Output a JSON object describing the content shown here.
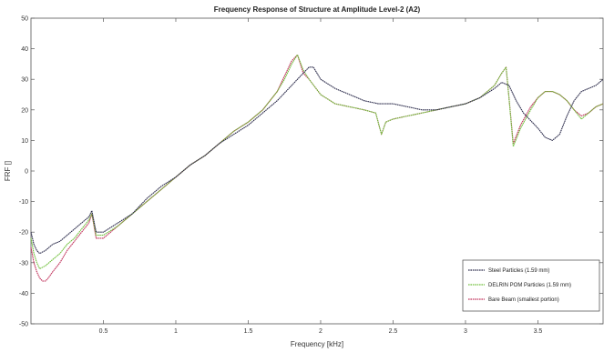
{
  "chart_data": {
    "type": "line",
    "title": "Frequency Response of Structure at Amplitude Level-2 (A2)",
    "xlabel": "Frequency [kHz]",
    "ylabel": "FRF []",
    "xlim": [
      0,
      3.95
    ],
    "ylim": [
      -50,
      50
    ],
    "xticks": [
      0.5,
      1,
      1.5,
      2,
      2.5,
      3,
      3.5
    ],
    "xtick_labels": [
      "0.5",
      "1",
      "1.5",
      "2",
      "2.5",
      "3",
      "3.5"
    ],
    "yticks": [
      -50,
      -40,
      -30,
      -20,
      -10,
      0,
      10,
      20,
      30,
      40,
      50
    ],
    "ytick_labels": [
      "-50",
      "-40",
      "-30",
      "-20",
      "-10",
      "0",
      "10",
      "20",
      "30",
      "40",
      "50"
    ],
    "grid": false,
    "legend_position": "bottom-right",
    "series": [
      {
        "name": "Steel Particles (1.59 mm)",
        "color": "#2a2a4a",
        "x": [
          0.0,
          0.02,
          0.04,
          0.06,
          0.1,
          0.15,
          0.2,
          0.25,
          0.3,
          0.35,
          0.4,
          0.42,
          0.45,
          0.5,
          0.6,
          0.7,
          0.8,
          0.9,
          1.0,
          1.1,
          1.2,
          1.3,
          1.4,
          1.5,
          1.6,
          1.7,
          1.8,
          1.86,
          1.92,
          1.95,
          2.0,
          2.1,
          2.2,
          2.3,
          2.4,
          2.5,
          2.6,
          2.7,
          2.8,
          2.9,
          3.0,
          3.1,
          3.2,
          3.25,
          3.3,
          3.35,
          3.4,
          3.5,
          3.55,
          3.6,
          3.65,
          3.7,
          3.75,
          3.8,
          3.85,
          3.9,
          3.95
        ],
        "y": [
          -20,
          -24,
          -26,
          -27,
          -26,
          -24,
          -23,
          -21,
          -19,
          -17,
          -15,
          -13,
          -20,
          -20,
          -17,
          -14,
          -9,
          -5,
          -2,
          2,
          5,
          9,
          12,
          15,
          19,
          23,
          28,
          31,
          34,
          34,
          30,
          27,
          25,
          23,
          22,
          22,
          21,
          20,
          20,
          21,
          22,
          24,
          27,
          29,
          28,
          23,
          19,
          14,
          11,
          10,
          12,
          18,
          23,
          26,
          27,
          28,
          30
        ]
      },
      {
        "name": "DELRIN POM Particles (1.59 mm)",
        "color": "#6fbf3a",
        "x": [
          0.0,
          0.02,
          0.04,
          0.06,
          0.1,
          0.15,
          0.2,
          0.25,
          0.3,
          0.35,
          0.4,
          0.42,
          0.45,
          0.5,
          0.6,
          0.7,
          0.8,
          0.9,
          1.0,
          1.1,
          1.2,
          1.3,
          1.4,
          1.5,
          1.6,
          1.7,
          1.75,
          1.8,
          1.84,
          1.88,
          1.92,
          2.0,
          2.1,
          2.2,
          2.3,
          2.38,
          2.42,
          2.45,
          2.5,
          2.6,
          2.7,
          2.8,
          2.9,
          3.0,
          3.1,
          3.2,
          3.25,
          3.28,
          3.3,
          3.33,
          3.38,
          3.45,
          3.5,
          3.55,
          3.6,
          3.65,
          3.7,
          3.75,
          3.8,
          3.85,
          3.9,
          3.95
        ],
        "y": [
          -22,
          -27,
          -30,
          -32,
          -31,
          -29,
          -27,
          -24,
          -22,
          -19,
          -16,
          -14,
          -21,
          -21,
          -18,
          -14,
          -10,
          -6,
          -2,
          2,
          5,
          9,
          13,
          16,
          20,
          26,
          30,
          35,
          38,
          33,
          30,
          25,
          22,
          21,
          20,
          19,
          12,
          16,
          17,
          18,
          19,
          20,
          21,
          22,
          24,
          28,
          32,
          34,
          24,
          8,
          14,
          20,
          24,
          26,
          26,
          25,
          23,
          20,
          17,
          19,
          21,
          22
        ]
      },
      {
        "name": "Bare Beam (smallest portion)",
        "color": "#c0305a",
        "x": [
          0.0,
          0.02,
          0.04,
          0.06,
          0.08,
          0.1,
          0.12,
          0.15,
          0.2,
          0.25,
          0.3,
          0.35,
          0.4,
          0.42,
          0.45,
          0.5,
          0.6,
          0.7,
          0.8,
          0.9,
          1.0,
          1.1,
          1.2,
          1.3,
          1.4,
          1.5,
          1.6,
          1.7,
          1.75,
          1.8,
          1.84,
          1.88,
          1.92,
          2.0,
          2.1,
          2.2,
          2.3,
          2.38,
          2.42,
          2.45,
          2.5,
          2.6,
          2.7,
          2.8,
          2.9,
          3.0,
          3.1,
          3.2,
          3.25,
          3.28,
          3.3,
          3.33,
          3.38,
          3.45,
          3.5,
          3.55,
          3.6,
          3.65,
          3.7,
          3.75,
          3.8,
          3.85,
          3.9,
          3.95
        ],
        "y": [
          -25,
          -30,
          -33,
          -35,
          -36,
          -36,
          -35,
          -33,
          -30,
          -26,
          -23,
          -20,
          -17,
          -14,
          -22,
          -22,
          -18,
          -14,
          -10,
          -6,
          -2,
          2,
          5,
          9,
          13,
          16,
          20,
          26,
          31,
          36,
          38,
          32,
          30,
          25,
          22,
          21,
          20,
          19,
          12,
          16,
          17,
          18,
          19,
          20,
          21,
          22,
          24,
          28,
          32,
          34,
          24,
          9,
          15,
          21,
          24,
          26,
          26,
          25,
          23,
          20,
          18,
          19,
          21,
          22
        ]
      }
    ]
  }
}
